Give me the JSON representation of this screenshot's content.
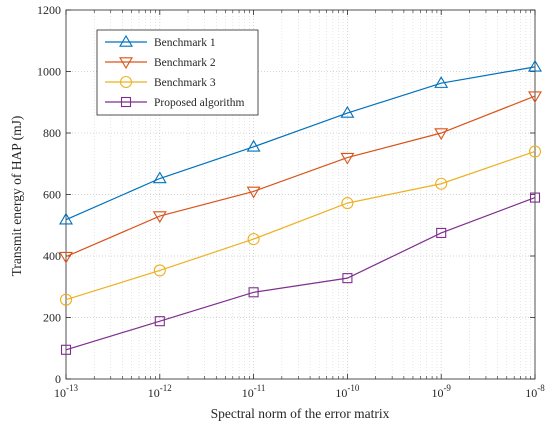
{
  "chart_data": {
    "type": "line",
    "title": "",
    "xlabel": "Spectral norm of the error matrix",
    "ylabel": "Transmit energy of HAP (mJ)",
    "x_scale": "log",
    "x": [
      1e-13,
      1e-12,
      1e-11,
      1e-10,
      1e-09,
      1e-08
    ],
    "x_tick_labels": [
      {
        "base": "10",
        "exp": "-13"
      },
      {
        "base": "10",
        "exp": "-12"
      },
      {
        "base": "10",
        "exp": "-11"
      },
      {
        "base": "10",
        "exp": "-10"
      },
      {
        "base": "10",
        "exp": "-9"
      },
      {
        "base": "10",
        "exp": "-8"
      }
    ],
    "xlim": [
      1e-13,
      1e-08
    ],
    "ylim": [
      0,
      1200
    ],
    "y_ticks": [
      0,
      200,
      400,
      600,
      800,
      1000,
      1200
    ],
    "grid": true,
    "minor_grid": true,
    "legend_position": "top-left",
    "series": [
      {
        "name": "Benchmark 1",
        "color": "#0072BD",
        "marker": "triangle-up",
        "values": [
          518,
          652,
          755,
          865,
          962,
          1015
        ]
      },
      {
        "name": "Benchmark 2",
        "color": "#D95319",
        "marker": "triangle-down",
        "values": [
          398,
          530,
          610,
          720,
          800,
          920
        ]
      },
      {
        "name": "Benchmark 3",
        "color": "#EDB120",
        "marker": "circle",
        "values": [
          258,
          353,
          455,
          572,
          635,
          740
        ]
      },
      {
        "name": "Proposed algorithm",
        "color": "#7E2F8E",
        "marker": "square",
        "values": [
          95,
          188,
          282,
          328,
          475,
          590
        ]
      }
    ]
  }
}
